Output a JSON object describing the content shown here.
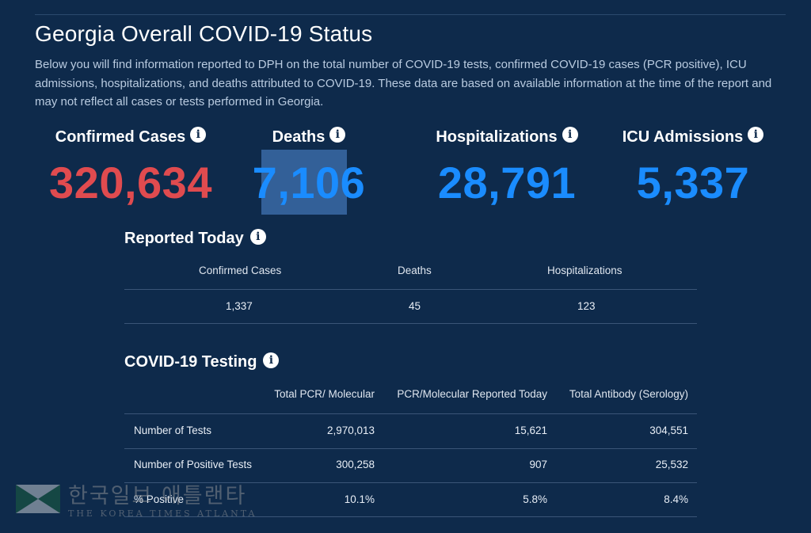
{
  "header": {
    "title": "Georgia Overall COVID-19 Status",
    "intro": "Below you will find information reported to DPH on the total number of COVID-19 tests, confirmed COVID-19 cases (PCR positive), ICU admissions, hospitalizations, and deaths attributed to COVID-19. These data are based on available information at the time of the report and may not reflect all cases or tests performed in Georgia."
  },
  "stats": [
    {
      "label": "Confirmed Cases",
      "value": "320,634",
      "color": "#e04b4f"
    },
    {
      "label": "Deaths",
      "value": "7,106",
      "color": "#1a8cff"
    },
    {
      "label": "Hospitalizations",
      "value": "28,791",
      "color": "#1a8cff"
    },
    {
      "label": "ICU Admissions",
      "value": "5,337",
      "color": "#1a8cff"
    }
  ],
  "reported_today": {
    "title": "Reported Today",
    "columns": [
      "Confirmed Cases",
      "Deaths",
      "Hospitalizations"
    ],
    "values": [
      "1,337",
      "45",
      "123"
    ]
  },
  "testing": {
    "title": "COVID-19 Testing",
    "columns": [
      "Total PCR/ Molecular",
      "PCR/Molecular Reported Today",
      "Total Antibody (Serology)"
    ],
    "rows": [
      {
        "label": "Number of Tests",
        "values": [
          "2,970,013",
          "15,621",
          "304,551"
        ]
      },
      {
        "label": "Number of Positive Tests",
        "values": [
          "300,258",
          "907",
          "25,532"
        ]
      },
      {
        "label": "% Positive",
        "values": [
          "10.1%",
          "5.8%",
          "8.4%"
        ]
      }
    ]
  },
  "watermark": {
    "korean": "한국일보 애틀랜타",
    "english": "THE KOREA TIMES ATLANTA"
  },
  "icons": {
    "info": "info-icon"
  }
}
